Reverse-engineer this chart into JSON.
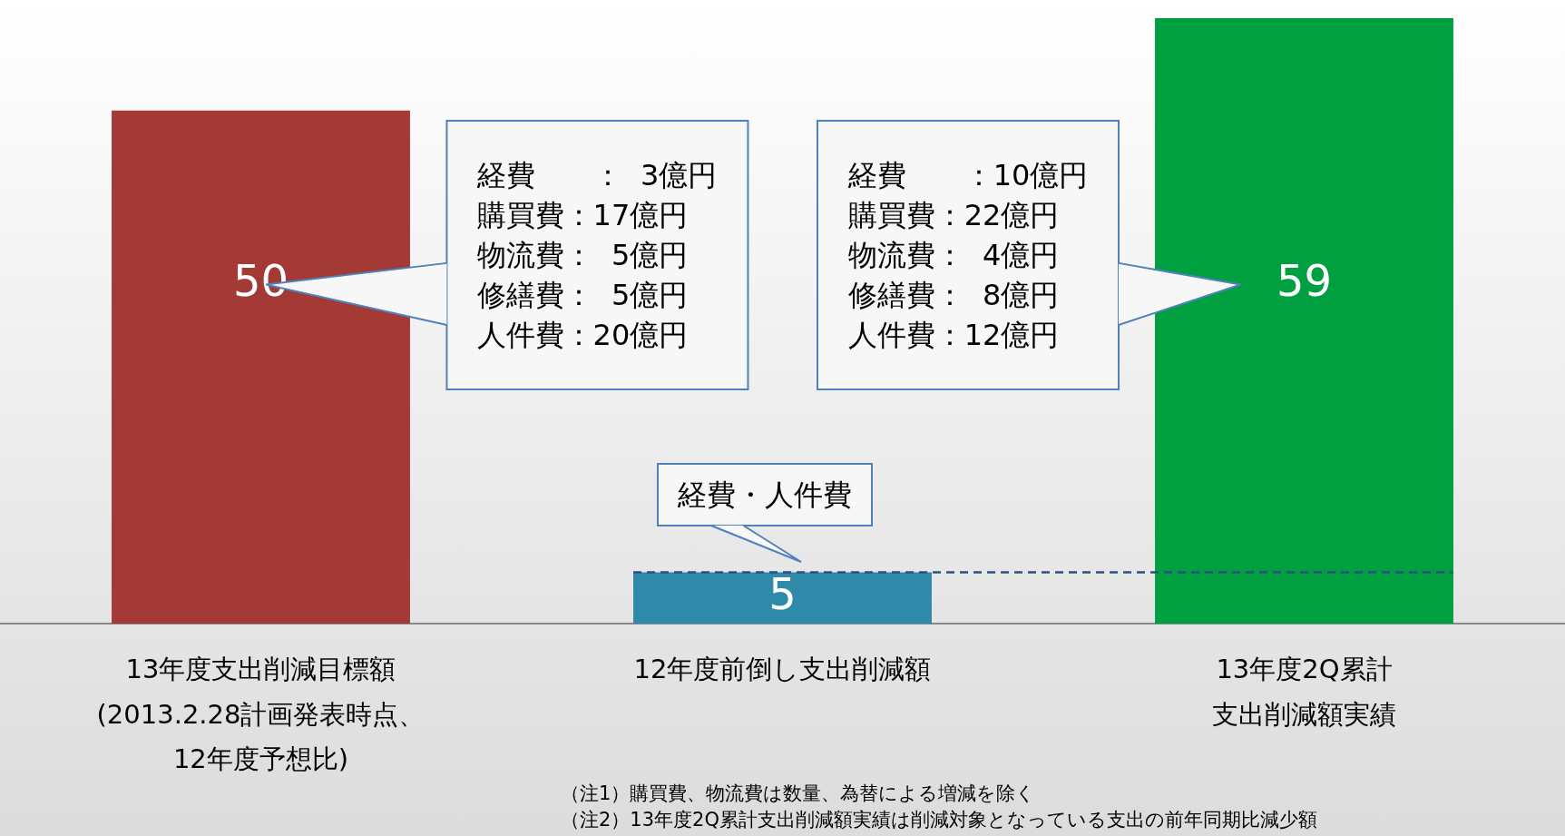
{
  "chart_data": {
    "type": "bar",
    "categories": [
      "13年度支出削減目標額\n(2013.2.28計画発表時点、\n12年度予想比)",
      "12年度前倒し支出削減額",
      "13年度2Q累計支出削減額実績"
    ],
    "values": [
      50,
      5,
      59
    ],
    "colors": [
      "#a33a36",
      "#2e8aa8",
      "#00a040"
    ],
    "data_labels": true,
    "grid": false,
    "legend": false,
    "ref_lines": [
      {
        "axis": "y",
        "value": 5,
        "label": null,
        "color": "#2f4f7f",
        "line_style": "dashed"
      }
    ],
    "annotations": [
      "経費　　：  3億円",
      "購買費：17億円",
      "物流費：  5億円",
      "修繕費：  5億円",
      "人件費：20億円",
      {
        "text": "経費・人件費",
        "x": "12年度前倒し支出削減額",
        "y": 5
      },
      "経費　　：10億円",
      "購買費：22億円",
      "物流費：  4億円",
      "修繕費：  8億円",
      "人件費：12億円",
      "（注1）購買費、物流費は数量、為替による増減を除く",
      "（注2）13年度2Q累計支出削減額実績は削減対象となっている支出の前年同期比減少額"
    ]
  }
}
